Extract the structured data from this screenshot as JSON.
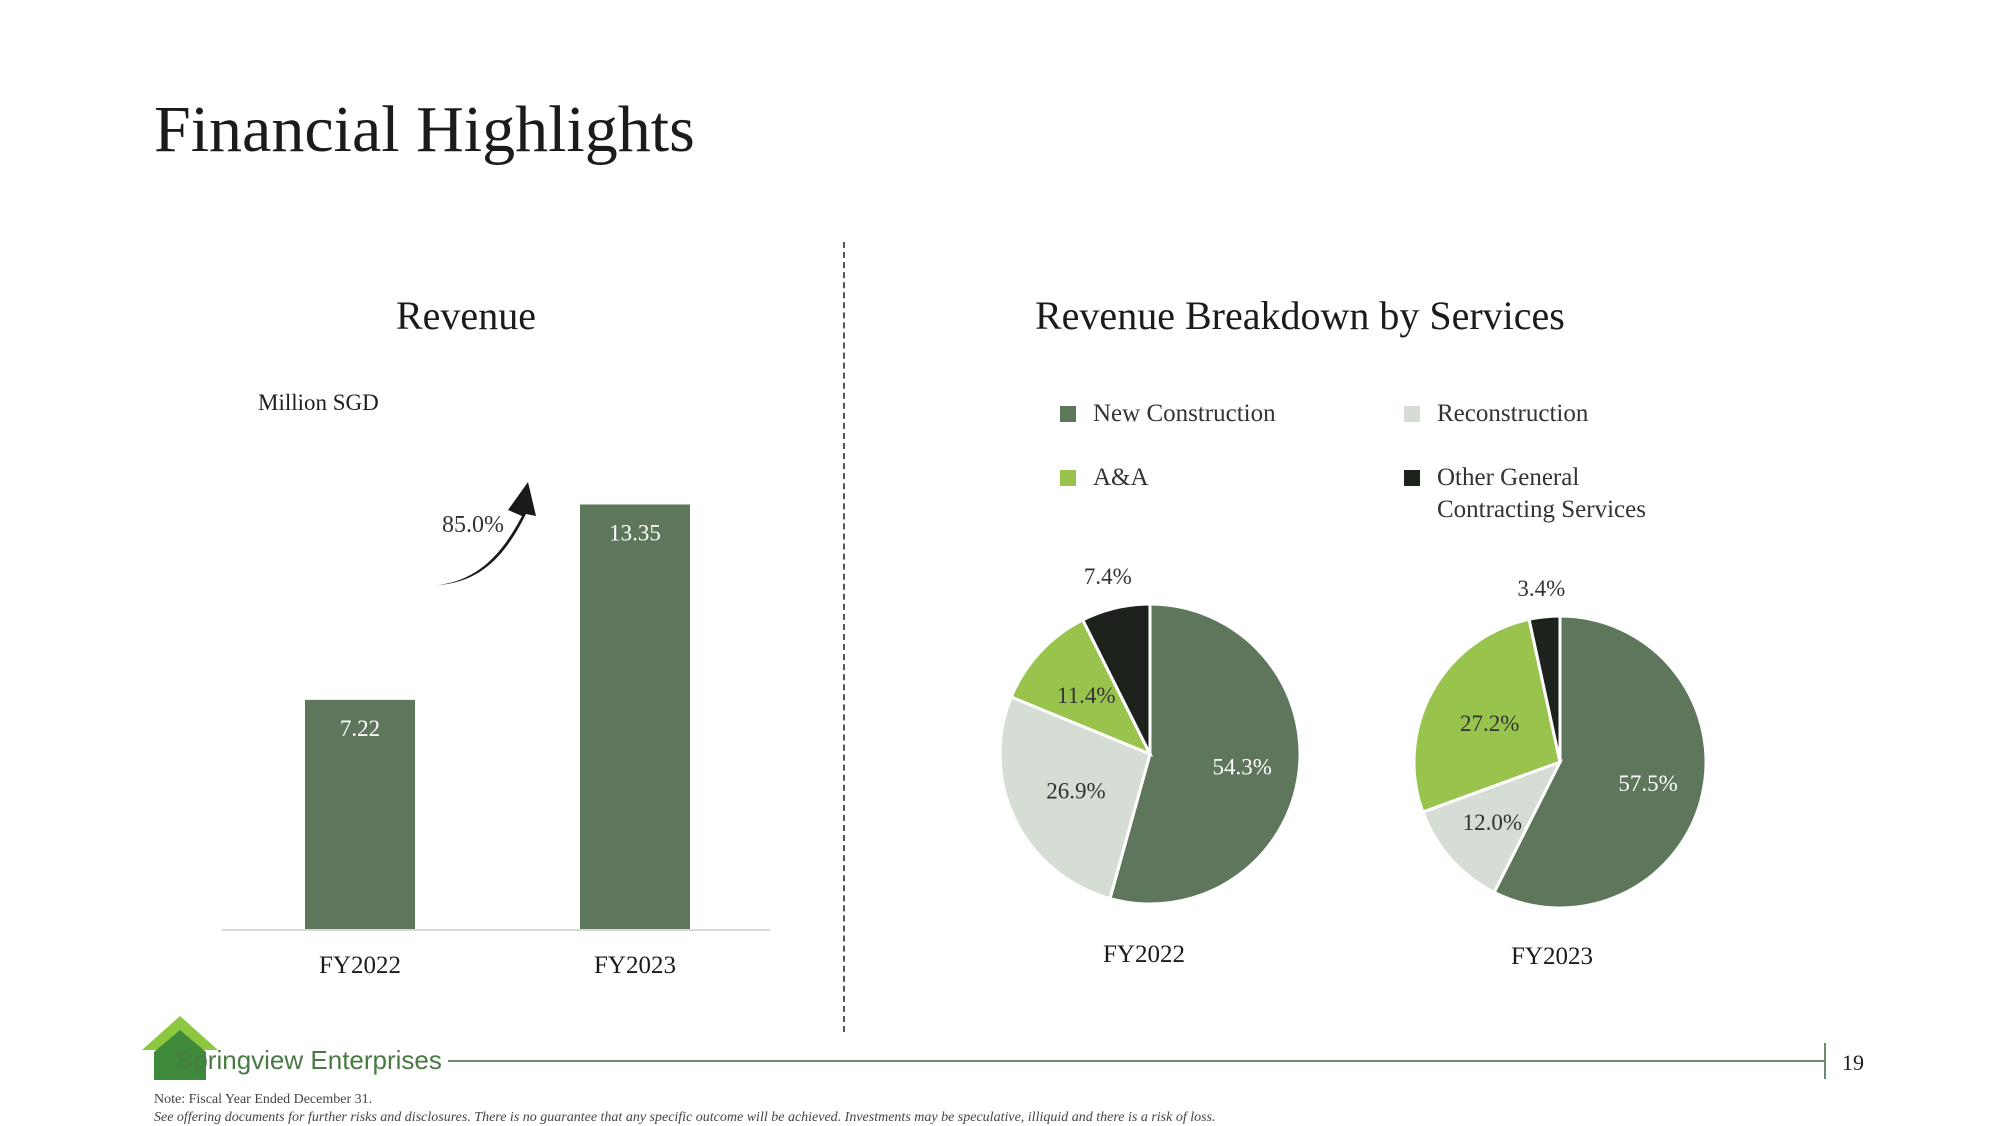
{
  "page": {
    "title": "Financial Highlights",
    "page_number": "19",
    "note": "Note: Fiscal Year Ended December 31.",
    "disclaimer": "See offering documents for further risks and disclosures. There is no guarantee that any specific outcome will be achieved. Investments may be speculative, illiquid and there is a risk of loss.",
    "logo": {
      "text": "Springview Enterprises",
      "icon": "house-logo-icon"
    }
  },
  "colors": {
    "dark_green": "#5e775c",
    "light_gray_green": "#d5ddd5",
    "lime_green": "#98c44e",
    "near_black": "#1e221d",
    "footer_line": "#6f8a72"
  },
  "revenue_panel": {
    "title": "Revenue",
    "unit": "Million SGD",
    "growth_label": "85.0%",
    "growth_icon": "curved-up-arrow-icon"
  },
  "breakdown_panel": {
    "title": "Revenue Breakdown by Services",
    "legend": [
      {
        "label": "New Construction",
        "color": "#5e775c"
      },
      {
        "label": "Reconstruction",
        "color": "#d5ddd5"
      },
      {
        "label": "A&A",
        "color": "#98c44e"
      },
      {
        "label": "Other General Contracting Services",
        "color": "#1e221d"
      }
    ]
  },
  "chart_data": [
    {
      "type": "bar",
      "title": "Revenue",
      "ylabel": "Million SGD",
      "categories": [
        "FY2022",
        "FY2023"
      ],
      "values": [
        7.22,
        13.35
      ],
      "labels": [
        "7.22",
        "13.35"
      ],
      "ylim": [
        0,
        16
      ],
      "color": "#5e775c",
      "grid": false,
      "annotation": "85.0%"
    },
    {
      "type": "pie",
      "title": "FY2022",
      "slices": [
        {
          "name": "New Construction",
          "value": 54.3,
          "label": "54.3%",
          "color": "#5e775c"
        },
        {
          "name": "Reconstruction",
          "value": 26.9,
          "label": "26.9%",
          "color": "#d5ddd5"
        },
        {
          "name": "A&A",
          "value": 11.4,
          "label": "11.4%",
          "color": "#98c44e"
        },
        {
          "name": "Other General Contracting Services",
          "value": 7.4,
          "label": "7.4%",
          "color": "#1e221d"
        }
      ]
    },
    {
      "type": "pie",
      "title": "FY2023",
      "slices": [
        {
          "name": "New Construction",
          "value": 57.5,
          "label": "57.5%",
          "color": "#5e775c"
        },
        {
          "name": "Reconstruction",
          "value": 12.0,
          "label": "12.0%",
          "color": "#d5ddd5"
        },
        {
          "name": "A&A",
          "value": 27.2,
          "label": "27.2%",
          "color": "#98c44e"
        },
        {
          "name": "Other General Contracting Services",
          "value": 3.4,
          "label": "3.4%",
          "color": "#1e221d"
        }
      ]
    }
  ]
}
